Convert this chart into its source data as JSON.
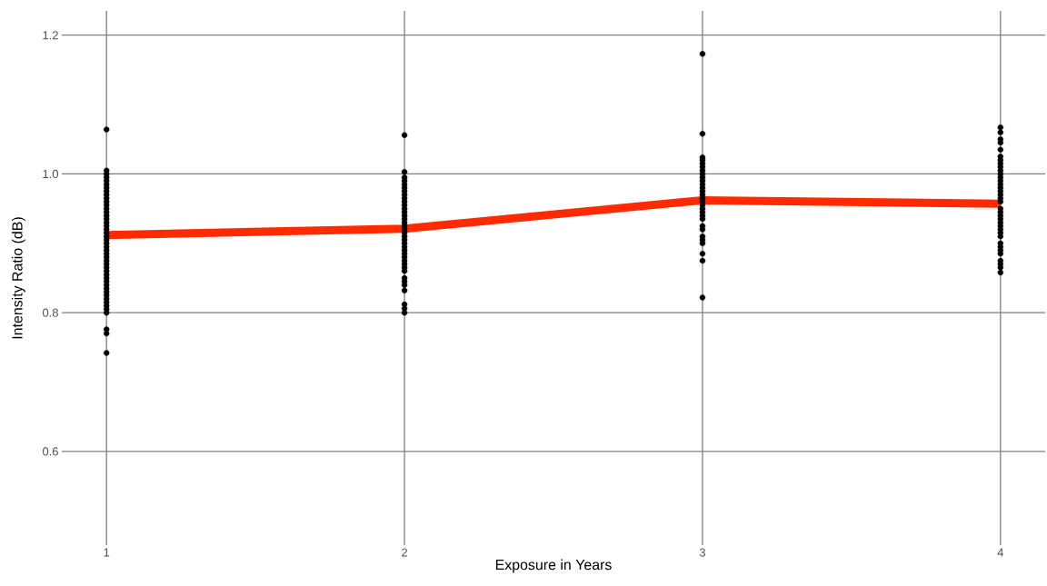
{
  "chart_data": {
    "type": "scatter",
    "xlabel": "Exposure in Years",
    "ylabel": "Intensity Ratio (dB)",
    "xlim": [
      0.85,
      4.15
    ],
    "ylim": [
      0.465,
      1.235
    ],
    "xticks": [
      1,
      2,
      3,
      4
    ],
    "yticks": [
      0.6,
      0.8,
      {
        "value": 1.0,
        "label": "1.0"
      },
      1.2
    ],
    "grid": true,
    "series": [
      {
        "marker": "circle",
        "color": "#000000",
        "x": [
          1,
          1,
          1,
          1,
          1,
          1,
          1,
          1,
          1,
          1,
          1,
          1,
          1,
          1,
          1,
          1,
          1,
          1,
          1,
          1,
          1,
          1,
          1,
          1,
          1,
          1,
          1,
          1,
          1,
          1,
          1,
          1,
          1,
          1,
          1,
          1,
          1,
          1,
          1,
          1,
          1,
          1,
          1,
          1,
          1,
          1
        ],
        "values": [
          1.064,
          1.005,
          1.0,
          0.995,
          0.99,
          0.985,
          0.98,
          0.975,
          0.97,
          0.965,
          0.96,
          0.955,
          0.95,
          0.945,
          0.94,
          0.935,
          0.93,
          0.925,
          0.92,
          0.915,
          0.91,
          0.905,
          0.9,
          0.895,
          0.89,
          0.885,
          0.88,
          0.875,
          0.87,
          0.865,
          0.86,
          0.855,
          0.85,
          0.845,
          0.84,
          0.835,
          0.83,
          0.825,
          0.82,
          0.815,
          0.81,
          0.805,
          0.8,
          0.776,
          0.77,
          0.742
        ]
      },
      {
        "marker": "circle",
        "color": "#000000",
        "x": [
          2,
          2,
          2,
          2,
          2,
          2,
          2,
          2,
          2,
          2,
          2,
          2,
          2,
          2,
          2,
          2,
          2,
          2,
          2,
          2,
          2,
          2,
          2,
          2,
          2,
          2,
          2,
          2,
          2,
          2,
          2,
          2,
          2,
          2,
          2,
          2,
          2
        ],
        "values": [
          1.056,
          1.003,
          0.995,
          0.99,
          0.985,
          0.98,
          0.975,
          0.97,
          0.965,
          0.96,
          0.955,
          0.95,
          0.945,
          0.94,
          0.935,
          0.93,
          0.925,
          0.92,
          0.915,
          0.91,
          0.905,
          0.9,
          0.895,
          0.89,
          0.885,
          0.88,
          0.875,
          0.87,
          0.865,
          0.86,
          0.85,
          0.845,
          0.84,
          0.832,
          0.812,
          0.806,
          0.8
        ]
      },
      {
        "marker": "circle",
        "color": "#000000",
        "x": [
          3,
          3,
          3,
          3,
          3,
          3,
          3,
          3,
          3,
          3,
          3,
          3,
          3,
          3,
          3,
          3,
          3,
          3,
          3,
          3,
          3,
          3,
          3,
          3,
          3,
          3,
          3,
          3,
          3
        ],
        "values": [
          1.173,
          1.058,
          1.024,
          1.02,
          1.015,
          1.01,
          1.005,
          1.0,
          0.995,
          0.99,
          0.985,
          0.98,
          0.975,
          0.97,
          0.965,
          0.96,
          0.955,
          0.95,
          0.945,
          0.94,
          0.935,
          0.925,
          0.92,
          0.91,
          0.905,
          0.9,
          0.885,
          0.875,
          0.822
        ]
      },
      {
        "marker": "circle",
        "color": "#000000",
        "x": [
          4,
          4,
          4,
          4,
          4,
          4,
          4,
          4,
          4,
          4,
          4,
          4,
          4,
          4,
          4,
          4,
          4,
          4,
          4,
          4,
          4,
          4,
          4,
          4,
          4,
          4,
          4,
          4,
          4,
          4,
          4,
          4,
          4,
          4,
          4,
          4
        ],
        "values": [
          1.067,
          1.06,
          1.05,
          1.045,
          1.035,
          1.025,
          1.02,
          1.015,
          1.01,
          1.005,
          1.0,
          0.995,
          0.99,
          0.985,
          0.98,
          0.975,
          0.97,
          0.965,
          0.96,
          0.95,
          0.945,
          0.94,
          0.935,
          0.93,
          0.925,
          0.92,
          0.915,
          0.91,
          0.9,
          0.895,
          0.89,
          0.885,
          0.875,
          0.87,
          0.865,
          0.858
        ]
      },
      {
        "type": "line",
        "marker": "none",
        "color": "#ff2a00",
        "x": [
          1,
          2,
          3,
          4
        ],
        "values": [
          0.912,
          0.921,
          0.962,
          0.957
        ]
      }
    ]
  }
}
